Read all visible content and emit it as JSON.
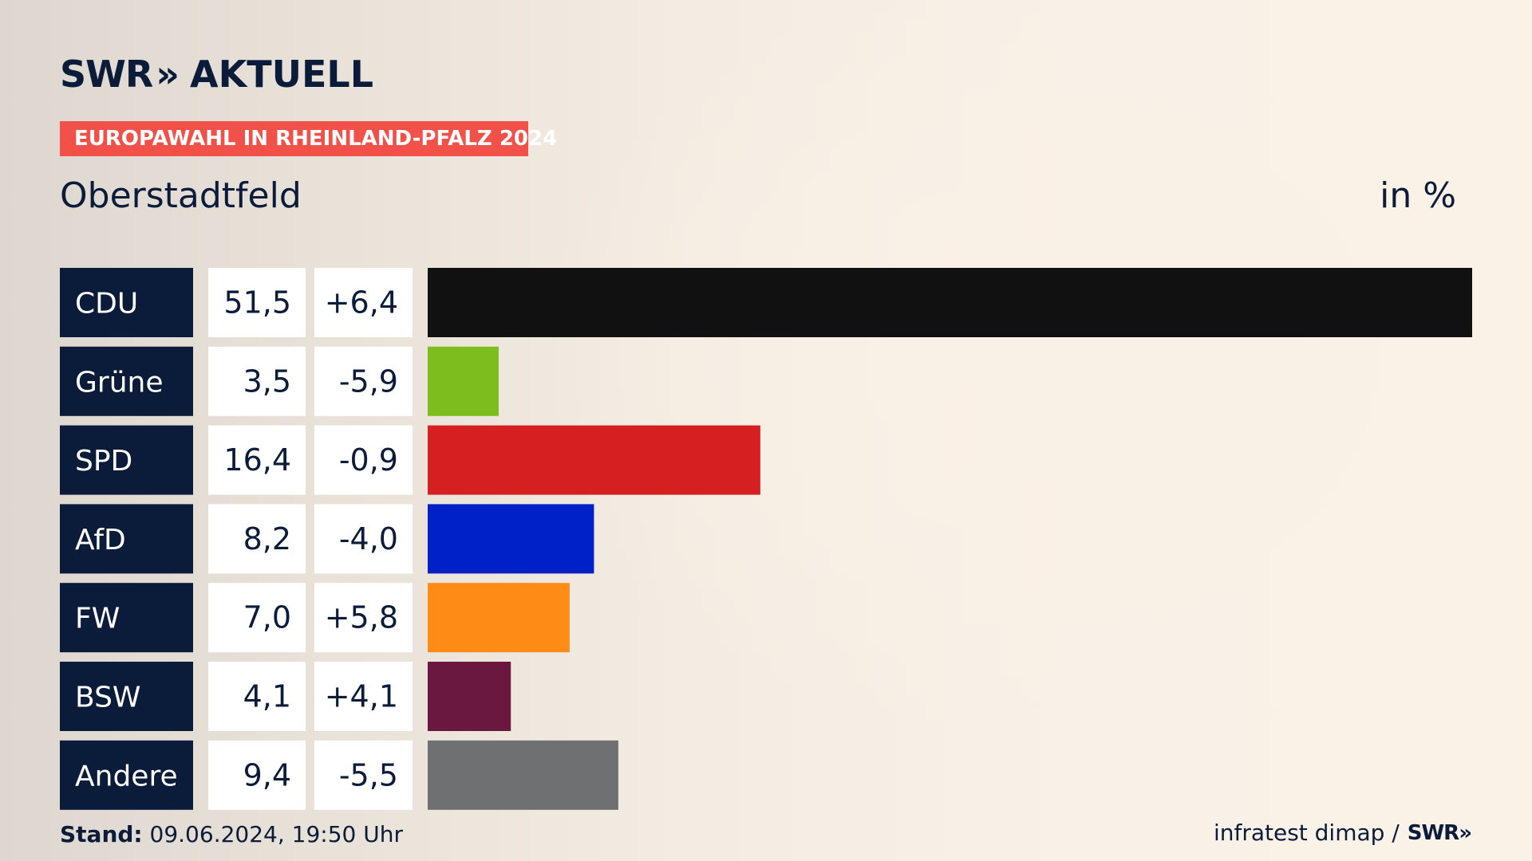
{
  "brand": {
    "logo_left": "SWR",
    "logo_chevrons": "»",
    "logo_right": "AKTUELL"
  },
  "header": {
    "tag": "EUROPAWAHL IN RHEINLAND-PFALZ 2024",
    "title": "Oberstadtfeld",
    "unit": "in %"
  },
  "chart_data": {
    "type": "bar",
    "orientation": "horizontal",
    "title": "Oberstadtfeld",
    "unit": "in %",
    "categories": [
      "CDU",
      "Grüne",
      "SPD",
      "AfD",
      "FW",
      "BSW",
      "Andere"
    ],
    "values": [
      51.5,
      3.5,
      16.4,
      8.2,
      7.0,
      4.1,
      9.4
    ],
    "value_labels": [
      "51,5",
      "3,5",
      "16,4",
      "8,2",
      "7,0",
      "4,1",
      "9,4"
    ],
    "change_labels": [
      "+6,4",
      "-5,9",
      "-0,9",
      "-4,0",
      "+5,8",
      "+4,1",
      "-5,5"
    ],
    "changes": [
      6.4,
      -5.9,
      -0.9,
      -4.0,
      5.8,
      4.1,
      -5.5
    ],
    "colors": [
      "#111111",
      "#7dbd1e",
      "#d61f21",
      "#0020c8",
      "#ff8c17",
      "#6b1840",
      "#6f7072"
    ],
    "xlim": [
      0,
      51.5
    ],
    "grid": false,
    "legend": "none"
  },
  "footer": {
    "stand_label": "Stand:",
    "stand_value": "09.06.2024, 19:50 Uhr",
    "source": "infratest dimap /",
    "source_logo": "SWR",
    "source_logo_chevrons": "»"
  },
  "colors": {
    "navy": "#0b1b3a",
    "tag_red": "#f2514a",
    "cell_white": "#ffffff"
  }
}
